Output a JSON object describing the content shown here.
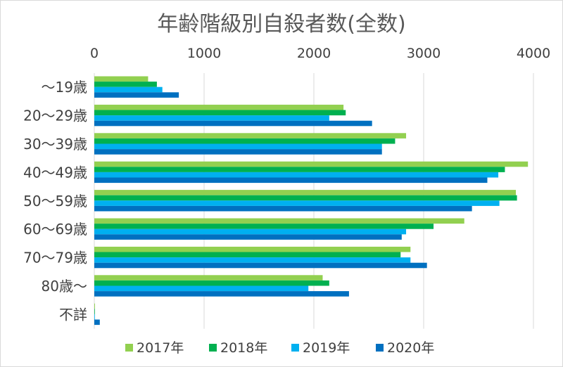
{
  "chart_data": {
    "type": "bar",
    "orientation": "horizontal",
    "title": "年齢階級別自殺者数(全数)",
    "xlim": [
      0,
      4000
    ],
    "x_ticks": [
      "0",
      "1000",
      "2000",
      "3000",
      "4000"
    ],
    "grid": true,
    "legend_position": "bottom",
    "categories": [
      "〜19歳",
      "20〜29歳",
      "30〜39歳",
      "40〜49歳",
      "50〜59歳",
      "60〜69歳",
      "70〜79歳",
      "80歳〜",
      "不詳"
    ],
    "series": [
      {
        "name": "2017年",
        "color": "#92d050",
        "values": [
          490,
          2270,
          2840,
          3950,
          3840,
          3370,
          2880,
          2080,
          6
        ]
      },
      {
        "name": "2018年",
        "color": "#00b050",
        "values": [
          570,
          2290,
          2740,
          3740,
          3850,
          3090,
          2790,
          2140,
          4
        ]
      },
      {
        "name": "2019年",
        "color": "#00b0f0",
        "values": [
          620,
          2140,
          2620,
          3680,
          3690,
          2840,
          2880,
          1950,
          3
        ]
      },
      {
        "name": "2020年",
        "color": "#0070c0",
        "values": [
          770,
          2530,
          2620,
          3580,
          3440,
          2800,
          3030,
          2320,
          50
        ]
      }
    ]
  }
}
